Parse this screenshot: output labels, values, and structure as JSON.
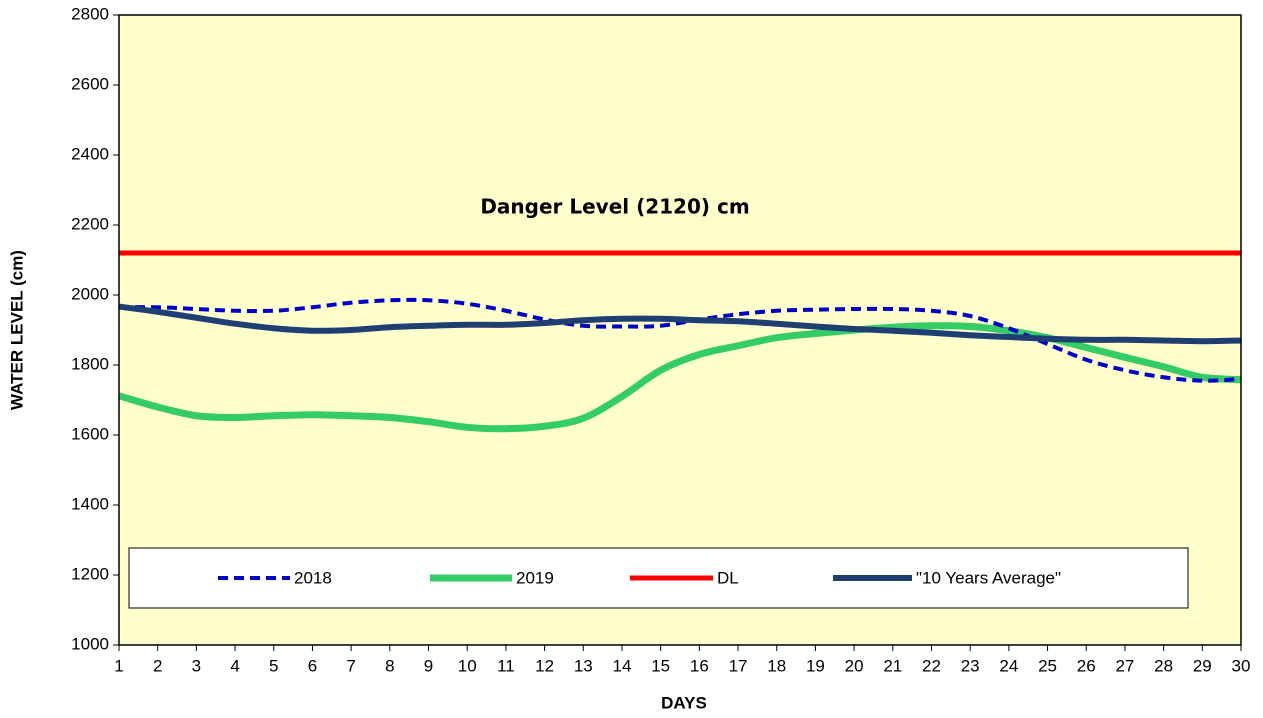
{
  "chart_data": {
    "type": "line",
    "annotation": "Danger Level (2120) cm",
    "x_label": "DAYS",
    "y_label": "WATER LEVEL (cm)",
    "x": [
      1,
      2,
      3,
      4,
      5,
      6,
      7,
      8,
      9,
      10,
      11,
      12,
      13,
      14,
      15,
      16,
      17,
      18,
      19,
      20,
      21,
      22,
      23,
      24,
      25,
      26,
      27,
      28,
      29,
      30
    ],
    "xlim": [
      1,
      30
    ],
    "xticks": [
      1,
      2,
      3,
      4,
      5,
      6,
      7,
      8,
      9,
      10,
      11,
      12,
      13,
      14,
      15,
      16,
      17,
      18,
      19,
      20,
      21,
      22,
      23,
      24,
      25,
      26,
      27,
      28,
      29,
      30
    ],
    "ylim": [
      1000,
      2800
    ],
    "yticks": [
      1000,
      1200,
      1400,
      1600,
      1800,
      2000,
      2200,
      2400,
      2600,
      2800
    ],
    "series": [
      {
        "name": "2018",
        "color": "#0000cc",
        "dashed": true,
        "width": 4,
        "values": [
          1965,
          1965,
          1960,
          1955,
          1955,
          1965,
          1978,
          1985,
          1985,
          1975,
          1955,
          1930,
          1912,
          1910,
          1912,
          1930,
          1945,
          1955,
          1958,
          1960,
          1960,
          1955,
          1940,
          1905,
          1860,
          1815,
          1785,
          1765,
          1755,
          1760
        ]
      },
      {
        "name": "2019",
        "color": "#33cc66",
        "dashed": false,
        "width": 7,
        "values": [
          1712,
          1680,
          1655,
          1650,
          1655,
          1658,
          1655,
          1650,
          1638,
          1622,
          1618,
          1625,
          1648,
          1710,
          1785,
          1830,
          1855,
          1878,
          1890,
          1900,
          1908,
          1912,
          1910,
          1898,
          1878,
          1850,
          1822,
          1795,
          1765,
          1758
        ]
      },
      {
        "name": "DL",
        "color": "#ff0000",
        "dashed": false,
        "width": 5,
        "values": [
          2120,
          2120,
          2120,
          2120,
          2120,
          2120,
          2120,
          2120,
          2120,
          2120,
          2120,
          2120,
          2120,
          2120,
          2120,
          2120,
          2120,
          2120,
          2120,
          2120,
          2120,
          2120,
          2120,
          2120,
          2120,
          2120,
          2120,
          2120,
          2120,
          2120
        ]
      },
      {
        "name": "\"10 Years Average\"",
        "color": "#1f3f73",
        "dashed": false,
        "width": 6,
        "values": [
          1967,
          1952,
          1935,
          1918,
          1905,
          1898,
          1900,
          1908,
          1912,
          1915,
          1915,
          1920,
          1928,
          1932,
          1932,
          1928,
          1925,
          1918,
          1910,
          1903,
          1898,
          1892,
          1885,
          1880,
          1875,
          1872,
          1872,
          1870,
          1868,
          1870
        ]
      }
    ],
    "plot_background": "#ffffcc"
  }
}
